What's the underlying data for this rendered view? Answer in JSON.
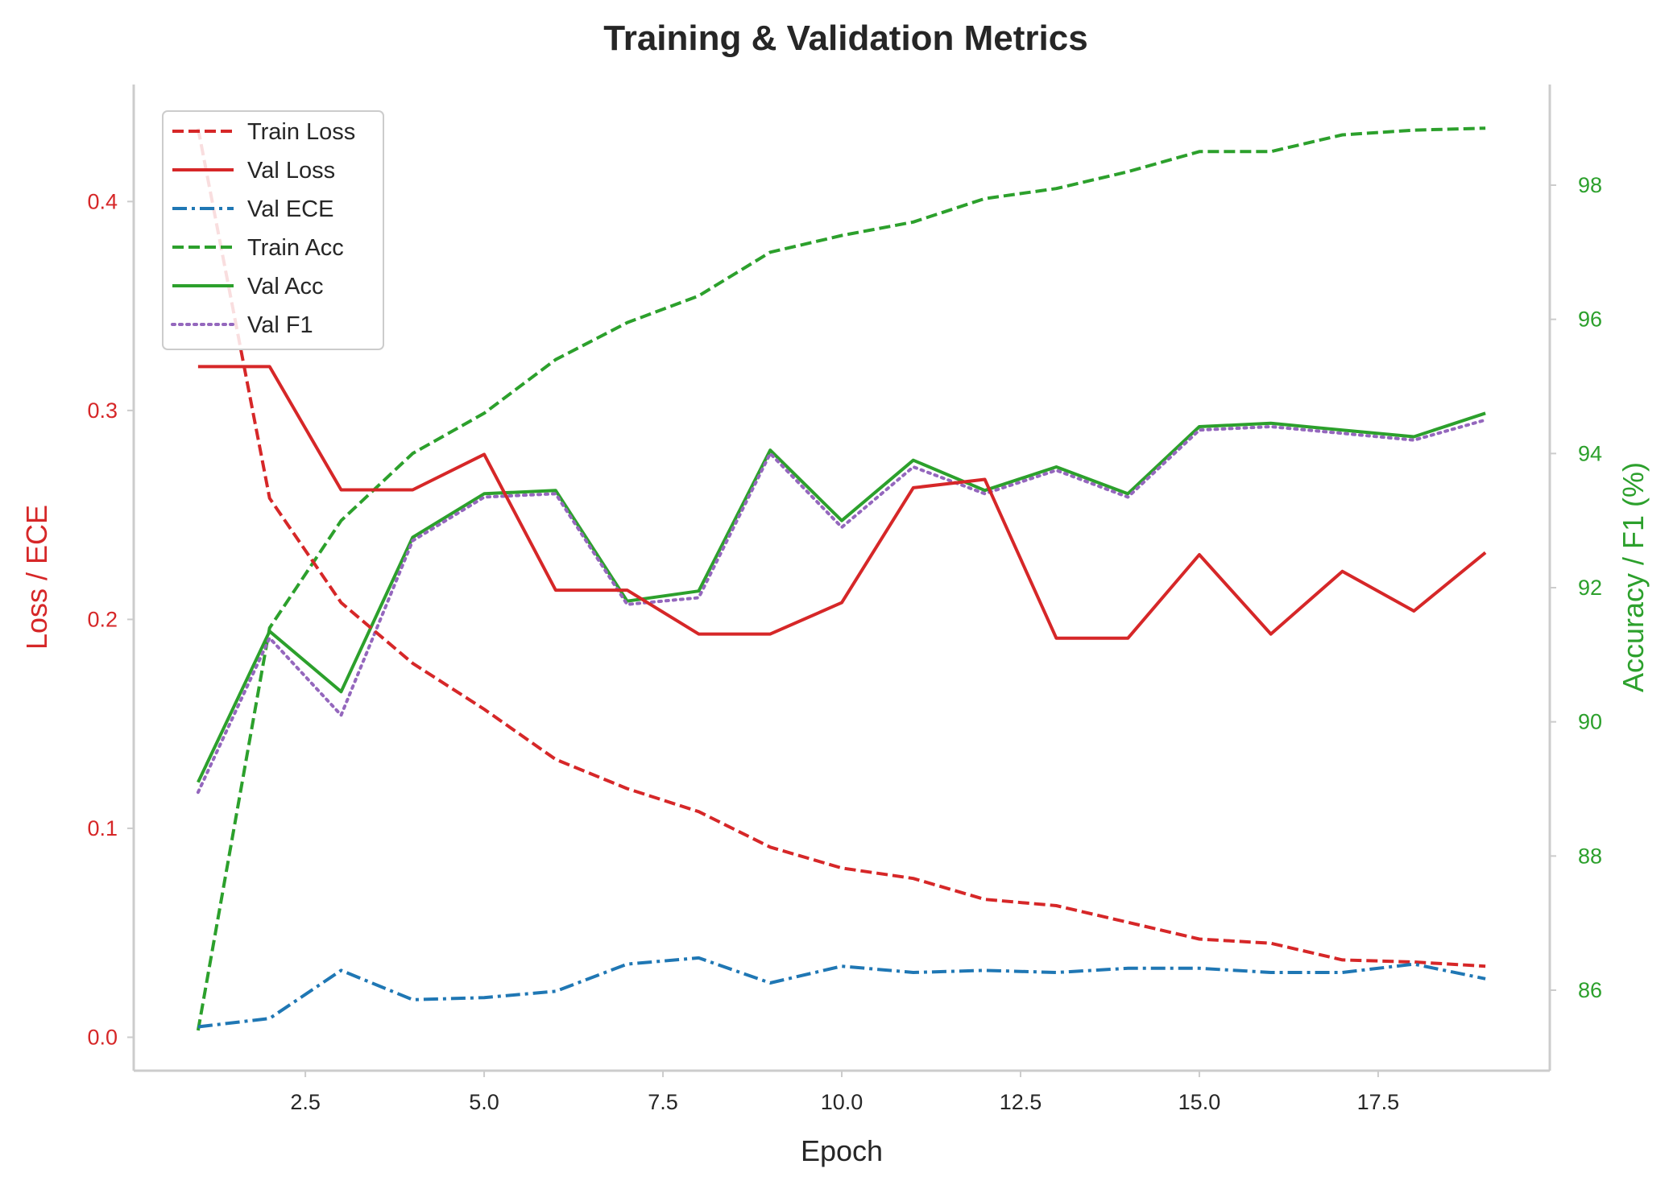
{
  "chart_data": {
    "type": "line",
    "title": "Training & Validation Metrics",
    "xlabel": "Epoch",
    "ylabel_left": "Loss / ECE",
    "ylabel_right": "Accuracy / F1 (%)",
    "xlim": [
      0.1,
      19.9
    ],
    "ylim_left": [
      -0.016,
      0.456
    ],
    "ylim_right": [
      84.8,
      99.5
    ],
    "xticks": [
      2.5,
      5.0,
      7.5,
      10.0,
      12.5,
      15.0,
      17.5
    ],
    "yticks_left": [
      0.0,
      0.1,
      0.2,
      0.3,
      0.4
    ],
    "yticks_right": [
      86,
      88,
      90,
      92,
      94,
      96,
      98
    ],
    "grid": false,
    "legend_position": "upper-left",
    "colors": {
      "left_axis": "#d62728",
      "right_axis": "#2ca02c",
      "text": "#262626",
      "spine": "#cccccc"
    },
    "x": [
      1,
      2,
      3,
      4,
      5,
      6,
      7,
      8,
      9,
      10,
      11,
      12,
      13,
      14,
      15,
      16,
      17,
      18,
      19
    ],
    "series": [
      {
        "name": "Train Loss",
        "axis": "left",
        "color": "#d62728",
        "style": "dashed",
        "values": [
          0.435,
          0.258,
          0.208,
          0.179,
          0.157,
          0.133,
          0.119,
          0.108,
          0.091,
          0.081,
          0.076,
          0.066,
          0.063,
          0.055,
          0.047,
          0.045,
          0.037,
          0.036,
          0.034
        ]
      },
      {
        "name": "Val Loss",
        "axis": "left",
        "color": "#d62728",
        "style": "solid",
        "values": [
          0.321,
          0.321,
          0.262,
          0.262,
          0.279,
          0.214,
          0.214,
          0.193,
          0.193,
          0.208,
          0.263,
          0.267,
          0.191,
          0.191,
          0.231,
          0.193,
          0.223,
          0.204,
          0.232
        ]
      },
      {
        "name": "Val ECE",
        "axis": "left",
        "color": "#1f77b4",
        "style": "dashdot",
        "values": [
          0.005,
          0.009,
          0.032,
          0.018,
          0.019,
          0.022,
          0.035,
          0.038,
          0.026,
          0.034,
          0.031,
          0.032,
          0.031,
          0.033,
          0.033,
          0.031,
          0.031,
          0.035,
          0.028
        ]
      },
      {
        "name": "Train Acc",
        "axis": "right",
        "color": "#2ca02c",
        "style": "dashed",
        "values": [
          85.4,
          91.4,
          93.0,
          94.0,
          94.6,
          95.4,
          95.95,
          96.35,
          97.0,
          97.25,
          97.45,
          97.8,
          97.95,
          98.2,
          98.5,
          98.5,
          98.75,
          98.82,
          98.85
        ]
      },
      {
        "name": "Val Acc",
        "axis": "right",
        "color": "#2ca02c",
        "style": "solid",
        "values": [
          89.1,
          91.35,
          90.45,
          92.75,
          93.4,
          93.45,
          91.8,
          91.95,
          94.05,
          93.0,
          93.9,
          93.45,
          93.8,
          93.4,
          94.4,
          94.45,
          94.35,
          94.25,
          94.6
        ]
      },
      {
        "name": "Val F1",
        "axis": "right",
        "color": "#9467bd",
        "style": "dotted",
        "values": [
          88.95,
          91.25,
          90.1,
          92.7,
          93.35,
          93.4,
          91.75,
          91.85,
          94.0,
          92.9,
          93.8,
          93.4,
          93.75,
          93.35,
          94.35,
          94.4,
          94.3,
          94.2,
          94.5
        ]
      }
    ]
  }
}
